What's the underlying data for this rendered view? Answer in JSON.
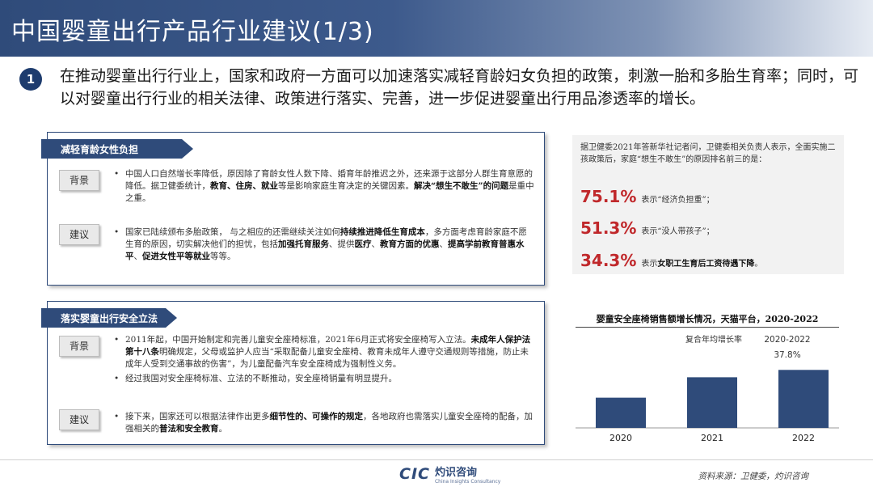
{
  "title": "中国婴童出行产品行业建议(1/3)",
  "intro": {
    "number": "1",
    "text": "在推动婴童出行行业上，国家和政府一方面可以加速落实减轻育龄妇女负担的政策，刺激一胎和多胎生育率；同时，可以对婴童出行行业的相关法律、政策进行落实、完善，进一步促进婴童出行用品渗透率的增长。"
  },
  "panel1": {
    "tag": "减轻育龄女性负担",
    "background_label": "背景",
    "background_parts": [
      {
        "t": "中国人口自然增长率降低，原因除了育龄女性人数下降、婚育年龄推迟之外，还来源于这部分人群生育意愿的降低。据卫健委统计，",
        "b": false
      },
      {
        "t": "教育、住房、就业",
        "b": true
      },
      {
        "t": "等是影响家庭生育决定的关键因素。",
        "b": false
      },
      {
        "t": "解决“想生不敢生”的问题",
        "b": true
      },
      {
        "t": "是重中之重。",
        "b": false
      }
    ],
    "suggestion_label": "建议",
    "suggestion_parts": [
      {
        "t": "国家已陆续颁布多胎政策， 与之相应的还需继续关注如何",
        "b": false
      },
      {
        "t": "持续推进降低生育成本",
        "b": true
      },
      {
        "t": "，多方面考虑育龄家庭不愿生育的原因，切实解决他们的担忧，包括",
        "b": false
      },
      {
        "t": "加强托育服务",
        "b": true
      },
      {
        "t": "、提供",
        "b": false
      },
      {
        "t": "医疗",
        "b": true
      },
      {
        "t": "、",
        "b": false
      },
      {
        "t": "教育方面的优惠",
        "b": true
      },
      {
        "t": "、",
        "b": false
      },
      {
        "t": "提高学前教育普惠水平",
        "b": true
      },
      {
        "t": "、",
        "b": false
      },
      {
        "t": "促进女性平等就业",
        "b": true
      },
      {
        "t": "等等。",
        "b": false
      }
    ]
  },
  "panel2": {
    "tag": "落实婴童出行安全立法",
    "background_label": "背景",
    "background_bullet1_parts": [
      {
        "t": "2011年起，中国开始制定和完善儿童安全座椅标准，2021年6月正式将安全座椅写入立法。",
        "b": false
      },
      {
        "t": "未成年人保护法第十八条",
        "b": true
      },
      {
        "t": "明确规定，父母或监护人应当“采取配备儿童安全座椅、教育未成年人遵守交通规则等措施，防止未成年人受到交通事故的伤害”，为儿童配备汽车安全座椅成为强制性义务。",
        "b": false
      }
    ],
    "background_bullet2": "经过我国对安全座椅标准、立法的不断推动，安全座椅销量有明显提升。",
    "suggestion_label": "建议",
    "suggestion_parts": [
      {
        "t": "接下来，国家还可以根据法律作出更多",
        "b": false
      },
      {
        "t": "细节性的、可操作的规定",
        "b": true
      },
      {
        "t": "，各地政府也需落实儿童安全座椅的配备，加强相关的",
        "b": false
      },
      {
        "t": "普法和安全教育",
        "b": true
      },
      {
        "t": "。",
        "b": false
      }
    ]
  },
  "stats": {
    "intro": "据卫健委2021年答新华社记者问，卫健委相关负责人表示，全面实施二孩政策后，家庭“想生不敢生”的原因排名前三的是：",
    "items": [
      {
        "pct": "75.1%",
        "desc": "表示“经济负担重”；"
      },
      {
        "pct": "51.3%",
        "desc": "表示“没人带孩子”；"
      },
      {
        "pct": "34.3%",
        "desc_prefix": "表示",
        "desc_bold": "女职工生育后工资待遇下降",
        "desc_suffix": "。"
      }
    ]
  },
  "chart_data": {
    "type": "bar",
    "title": "婴童安全座椅销售额增长情况，天猫平台，2020-2022",
    "categories": [
      "2020",
      "2021",
      "2022"
    ],
    "values": [
      37,
      62,
      71
    ],
    "ylim": [
      0,
      100
    ],
    "bar_color": "#2f4b7a",
    "annotation_label": "复合年均增长率",
    "annotation_period": "2020-2022",
    "annotation_value": "37.8%",
    "grid": false,
    "legend": "none"
  },
  "footer": {
    "logo_text": "CIC",
    "brand_cn": "灼识咨询",
    "brand_en": "China Insights Consultancy",
    "source": "资料来源：卫健委，灼识咨询"
  },
  "colors": {
    "accent": "#2f4b7a",
    "highlight": "#c0282b"
  }
}
